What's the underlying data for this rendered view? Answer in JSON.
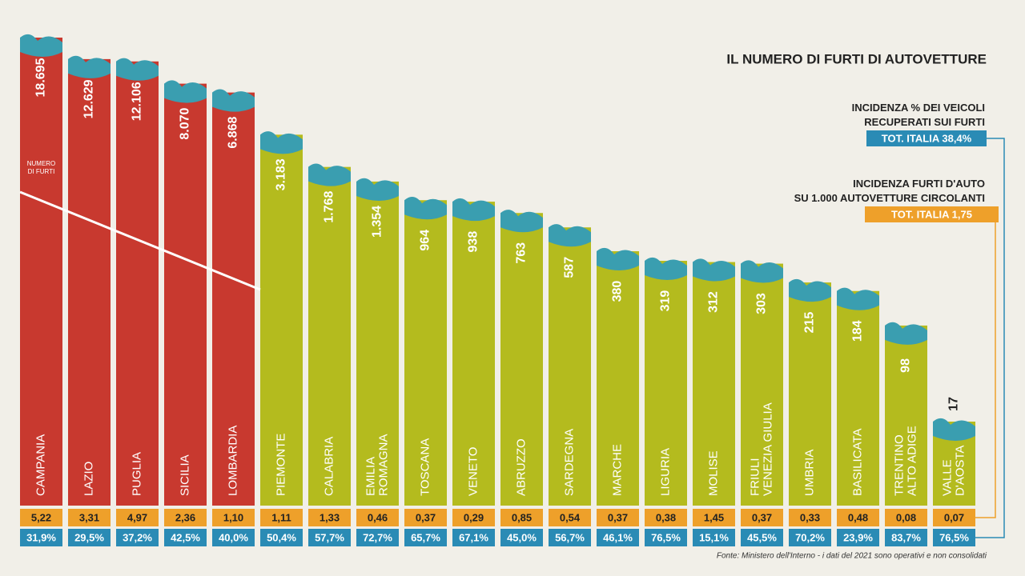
{
  "chart_data": {
    "type": "bar",
    "title": "IL NUMERO DI FURTI DI AUTOVETTURE",
    "bar_note": "NUMERO\nDI FURTI",
    "log_scale": true,
    "categories": [
      "CAMPANIA",
      "LAZIO",
      "PUGLIA",
      "SICILIA",
      "LOMBARDIA",
      "PIEMONTE",
      "CALABRIA",
      "EMILIA\nROMAGNA",
      "TOSCANA",
      "VENETO",
      "ABRUZZO",
      "SARDEGNA",
      "MARCHE",
      "LIGURIA",
      "MOLISE",
      "FRIULI\nVENEZIA GIULIA",
      "UMBRIA",
      "BASILICATA",
      "TRENTINO\nALTO ADIGE",
      "VALLE\nD'AOSTA"
    ],
    "values": [
      18695,
      12629,
      12106,
      8070,
      6868,
      3183,
      1768,
      1354,
      964,
      938,
      763,
      587,
      380,
      319,
      312,
      303,
      215,
      184,
      98,
      17
    ],
    "value_labels": [
      "18.695",
      "12.629",
      "12.106",
      "8.070",
      "6.868",
      "3.183",
      "1.768",
      "1.354",
      "964",
      "938",
      "763",
      "587",
      "380",
      "319",
      "312",
      "303",
      "215",
      "184",
      "98",
      "17"
    ],
    "colors": [
      "#c8392f",
      "#c8392f",
      "#c8392f",
      "#c8392f",
      "#c8392f",
      "#b4bb1e",
      "#b4bb1e",
      "#b4bb1e",
      "#b4bb1e",
      "#b4bb1e",
      "#b4bb1e",
      "#b4bb1e",
      "#b4bb1e",
      "#b4bb1e",
      "#b4bb1e",
      "#b4bb1e",
      "#b4bb1e",
      "#b4bb1e",
      "#b4bb1e",
      "#b4bb1e"
    ],
    "rows": [
      {
        "name": "INCIDENZA FURTI D'AUTO\nSU 1.000 AUTOVETTURE CIRCOLANTI",
        "total": "TOT. ITALIA 1,75",
        "color": "#eea02a",
        "values": [
          5.22,
          3.31,
          4.97,
          2.36,
          1.1,
          1.11,
          1.33,
          0.46,
          0.37,
          0.29,
          0.85,
          0.54,
          0.37,
          0.38,
          1.45,
          0.37,
          0.33,
          0.48,
          0.08,
          0.07
        ],
        "value_labels": [
          "5,22",
          "3,31",
          "4,97",
          "2,36",
          "1,10",
          "1,11",
          "1,33",
          "0,46",
          "0,37",
          "0,29",
          "0,85",
          "0,54",
          "0,37",
          "0,38",
          "1,45",
          "0,37",
          "0,33",
          "0,48",
          "0,08",
          "0,07"
        ]
      },
      {
        "name": "INCIDENZA % DEI VEICOLI\nRECUPERATI SUI FURTI",
        "total": "TOT. ITALIA 38,4%",
        "color": "#2a8bb5",
        "values": [
          31.9,
          29.5,
          37.2,
          42.5,
          40.0,
          50.4,
          57.7,
          72.7,
          65.7,
          67.1,
          45.0,
          56.7,
          46.1,
          76.5,
          15.1,
          45.5,
          70.2,
          23.9,
          83.7,
          76.5
        ],
        "value_labels": [
          "31,9%",
          "29,5%",
          "37,2%",
          "42,5%",
          "40,0%",
          "50,4%",
          "57,7%",
          "72,7%",
          "65,7%",
          "67,1%",
          "45,0%",
          "56,7%",
          "46,1%",
          "76,5%",
          "15,1%",
          "45,5%",
          "70,2%",
          "23,9%",
          "83,7%",
          "76,5%"
        ]
      }
    ],
    "source": "Fonte: Ministero dell'Interno - i dati del 2021 sono operativi e non consolidati"
  }
}
